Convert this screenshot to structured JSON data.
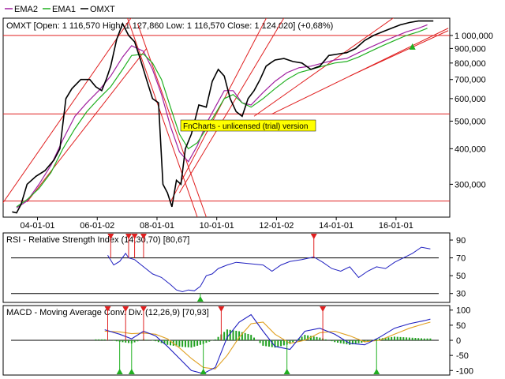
{
  "legend": [
    {
      "label": "EMA2",
      "color": "#a020a0"
    },
    {
      "label": "EMA1",
      "color": "#20b020"
    },
    {
      "label": "OMXT",
      "color": "#000000"
    }
  ],
  "watermark": "FnCharts - unlicensed (trial) version",
  "chart_data": [
    {
      "type": "line",
      "title": "OMXT [Open: 1 116,570  High: 1 127,860  Low: 1 116,570  Close: 1 124,020] (+0,68%)",
      "scale": "log",
      "ylim": [
        230000,
        1150000
      ],
      "x_ticks": [
        "04-01-01",
        "06-01-02",
        "08-01-01",
        "10-01-01",
        "12-01-02",
        "14-01-01",
        "16-01-01"
      ],
      "y_ticks": [
        "1 000,000",
        "900,000",
        "800,000",
        "700,000",
        "600,000",
        "500,000",
        "400,000",
        "300,000"
      ],
      "y_tick_values": [
        1000000,
        900000,
        800000,
        700000,
        600000,
        500000,
        400000,
        300000
      ],
      "horizontal_levels": [
        1000000,
        530000,
        262000
      ],
      "series": [
        {
          "name": "OMXT",
          "color": "#000000",
          "x": [
            2003.2,
            2003.35,
            2003.5,
            2003.7,
            2004.0,
            2004.3,
            2004.6,
            2004.8,
            2005.0,
            2005.2,
            2005.5,
            2005.8,
            2006.0,
            2006.2,
            2006.35,
            2006.5,
            2006.7,
            2006.9,
            2007.1,
            2007.3,
            2007.5,
            2007.7,
            2007.9,
            2008.1,
            2008.25,
            2008.4,
            2008.55,
            2008.7,
            2008.85,
            2009.0,
            2009.2,
            2009.45,
            2009.7,
            2009.9,
            2010.1,
            2010.3,
            2010.5,
            2010.7,
            2010.9,
            2011.1,
            2011.3,
            2011.5,
            2011.7,
            2011.85,
            2012.0,
            2012.3,
            2012.6,
            2012.9,
            2013.2,
            2013.5,
            2013.8,
            2014.1,
            2014.4,
            2014.7,
            2015.0,
            2015.3,
            2015.6,
            2015.9,
            2016.2,
            2016.5,
            2016.8,
            2017.1,
            2017.3
          ],
          "values": [
            240000,
            238000,
            255000,
            300000,
            320000,
            335000,
            365000,
            400000,
            600000,
            650000,
            700000,
            700000,
            660000,
            640000,
            700000,
            780000,
            970000,
            1100000,
            1000000,
            950000,
            820000,
            700000,
            600000,
            580000,
            300000,
            280000,
            250000,
            310000,
            300000,
            400000,
            450000,
            570000,
            560000,
            690000,
            760000,
            720000,
            600000,
            540000,
            520000,
            600000,
            640000,
            700000,
            780000,
            800000,
            820000,
            830000,
            810000,
            800000,
            760000,
            780000,
            850000,
            860000,
            870000,
            900000,
            960000,
            1000000,
            1030000,
            1060000,
            1090000,
            1110000,
            1124020,
            1124020,
            1124020
          ]
        },
        {
          "name": "EMA1",
          "color": "#20b020",
          "x": [
            2003.35,
            2003.7,
            2004.1,
            2004.5,
            2004.9,
            2005.3,
            2005.7,
            2006.1,
            2006.5,
            2006.9,
            2007.2,
            2007.6,
            2007.9,
            2008.2,
            2008.5,
            2008.8,
            2009.1,
            2009.4,
            2009.7,
            2010.0,
            2010.3,
            2010.6,
            2010.9,
            2011.2,
            2011.6,
            2012.0,
            2012.4,
            2012.8,
            2013.2,
            2013.6,
            2014.0,
            2014.4,
            2014.8,
            2015.2,
            2015.6,
            2016.0,
            2016.4,
            2016.8,
            2017.1
          ],
          "values": [
            250000,
            265000,
            290000,
            330000,
            400000,
            470000,
            540000,
            600000,
            660000,
            760000,
            850000,
            860000,
            800000,
            700000,
            560000,
            450000,
            400000,
            420000,
            470000,
            530000,
            600000,
            620000,
            580000,
            560000,
            600000,
            650000,
            700000,
            740000,
            760000,
            780000,
            800000,
            810000,
            840000,
            880000,
            920000,
            960000,
            1000000,
            1030000,
            1060000
          ]
        },
        {
          "name": "EMA2",
          "color": "#a020a0",
          "x": [
            2003.35,
            2003.7,
            2004.1,
            2004.5,
            2004.9,
            2005.3,
            2005.7,
            2006.1,
            2006.5,
            2006.9,
            2007.2,
            2007.6,
            2007.9,
            2008.2,
            2008.5,
            2008.8,
            2009.1,
            2009.4,
            2009.7,
            2010.0,
            2010.3,
            2010.6,
            2010.9,
            2011.2,
            2011.6,
            2012.0,
            2012.4,
            2012.8,
            2013.2,
            2013.6,
            2014.0,
            2014.4,
            2014.8,
            2015.2,
            2015.6,
            2016.0,
            2016.4,
            2016.8,
            2017.1
          ],
          "values": [
            248000,
            262000,
            300000,
            350000,
            430000,
            520000,
            580000,
            640000,
            720000,
            840000,
            920000,
            880000,
            760000,
            620000,
            480000,
            390000,
            360000,
            410000,
            490000,
            560000,
            640000,
            640000,
            580000,
            570000,
            630000,
            690000,
            740000,
            770000,
            780000,
            800000,
            820000,
            830000,
            870000,
            910000,
            950000,
            990000,
            1030000,
            1060000,
            1090000
          ]
        }
      ],
      "trend_lines": [
        {
          "x": [
            2002.8,
            2007.3
          ],
          "y": [
            250000,
            1200000
          ]
        },
        {
          "x": [
            2003.7,
            2007.7
          ],
          "y": [
            260000,
            900000
          ]
        },
        {
          "x": [
            2007.0,
            2009.4
          ],
          "y": [
            1200000,
            230000
          ]
        },
        {
          "x": [
            2007.4,
            2009.7
          ],
          "y": [
            1100000,
            230000
          ]
        },
        {
          "x": [
            2008.5,
            2011.8
          ],
          "y": [
            260000,
            1200000
          ]
        },
        {
          "x": [
            2008.8,
            2012.4
          ],
          "y": [
            280000,
            1200000
          ]
        },
        {
          "x": [
            2011.3,
            2016.2
          ],
          "y": [
            520000,
            1200000
          ]
        },
        {
          "x": [
            2011.9,
            2017.8
          ],
          "y": [
            530000,
            1060000
          ]
        },
        {
          "x": [
            2014.5,
            2017.8
          ],
          "y": [
            720000,
            1040000
          ]
        }
      ],
      "signals": [
        {
          "x": 2016.6,
          "direction": "up"
        }
      ]
    },
    {
      "type": "line",
      "title": "RSI - Relative Strength Index (14,30,70) [80,67]",
      "ylim": [
        20,
        98
      ],
      "y_ticks": [
        90,
        70,
        50,
        30
      ],
      "levels": [
        70,
        30
      ],
      "series": [
        {
          "name": "RSI",
          "color": "#2020c0",
          "x": [
            2006.4,
            2006.6,
            2006.8,
            2007.0,
            2007.1,
            2007.3,
            2007.6,
            2007.9,
            2008.2,
            2008.5,
            2008.7,
            2008.9,
            2009.1,
            2009.3,
            2009.5,
            2009.7,
            2009.9,
            2010.1,
            2010.4,
            2010.7,
            2011.0,
            2011.3,
            2011.6,
            2011.9,
            2012.2,
            2012.5,
            2012.9,
            2013.3,
            2013.6,
            2013.9,
            2014.2,
            2014.5,
            2014.8,
            2015.1,
            2015.4,
            2015.7,
            2016.0,
            2016.3,
            2016.6,
            2016.9,
            2017.2
          ],
          "values": [
            73,
            62,
            66,
            75,
            70,
            68,
            60,
            52,
            48,
            40,
            34,
            32,
            34,
            33,
            38,
            50,
            52,
            58,
            62,
            65,
            64,
            63,
            62,
            55,
            62,
            66,
            68,
            71,
            65,
            58,
            55,
            60,
            48,
            55,
            60,
            58,
            65,
            70,
            75,
            82,
            80
          ]
        }
      ],
      "signals": [
        {
          "x": 2006.5,
          "direction": "down"
        },
        {
          "x": 2007.1,
          "direction": "down"
        },
        {
          "x": 2007.3,
          "direction": "down"
        },
        {
          "x": 2007.6,
          "direction": "down"
        },
        {
          "x": 2009.5,
          "direction": "up"
        },
        {
          "x": 2013.3,
          "direction": "down"
        }
      ]
    },
    {
      "type": "bar",
      "title": "MACD - Moving Average Conv. Div. (12,26,9) [70,93]",
      "ylim": [
        -115,
        115
      ],
      "y_ticks": [
        100,
        50,
        0,
        -50,
        -100
      ],
      "levels": [
        0
      ],
      "series": [
        {
          "name": "MACD",
          "color": "#2020c0",
          "x": [
            2006.3,
            2006.8,
            2007.2,
            2007.6,
            2008.0,
            2008.4,
            2008.8,
            2009.2,
            2009.6,
            2010.0,
            2010.4,
            2010.8,
            2011.2,
            2011.6,
            2012.0,
            2012.5,
            2013.0,
            2013.5,
            2014.0,
            2014.5,
            2015.0,
            2015.5,
            2016.0,
            2016.5,
            2017.0,
            2017.2
          ],
          "values": [
            35,
            20,
            5,
            30,
            15,
            -20,
            -60,
            -100,
            -110,
            -90,
            10,
            60,
            85,
            30,
            -20,
            -30,
            30,
            40,
            20,
            -10,
            -15,
            10,
            40,
            55,
            65,
            70
          ]
        },
        {
          "name": "Signal",
          "color": "#e0a020",
          "x": [
            2006.3,
            2006.8,
            2007.2,
            2007.6,
            2008.0,
            2008.4,
            2008.8,
            2009.2,
            2009.6,
            2010.0,
            2010.4,
            2010.8,
            2011.2,
            2011.6,
            2012.0,
            2012.5,
            2013.0,
            2013.5,
            2014.0,
            2014.5,
            2015.0,
            2015.5,
            2016.0,
            2016.5,
            2017.0,
            2017.2
          ],
          "values": [
            30,
            28,
            22,
            24,
            20,
            5,
            -25,
            -60,
            -90,
            -95,
            -50,
            10,
            55,
            60,
            20,
            -10,
            0,
            25,
            30,
            15,
            -5,
            0,
            20,
            40,
            55,
            60
          ]
        }
      ],
      "histogram": {
        "color": "#20a020",
        "x_start": 2006.0,
        "x_end": 2017.2
      },
      "signals": [
        {
          "x": 2006.4,
          "direction": "down"
        },
        {
          "x": 2007.0,
          "direction": "down"
        },
        {
          "x": 2007.6,
          "direction": "down"
        },
        {
          "x": 2010.2,
          "direction": "down"
        },
        {
          "x": 2013.6,
          "direction": "down"
        },
        {
          "x": 2006.8,
          "direction": "up"
        },
        {
          "x": 2007.2,
          "direction": "up"
        },
        {
          "x": 2009.6,
          "direction": "up"
        },
        {
          "x": 2012.4,
          "direction": "up"
        },
        {
          "x": 2015.4,
          "direction": "up"
        }
      ]
    }
  ]
}
